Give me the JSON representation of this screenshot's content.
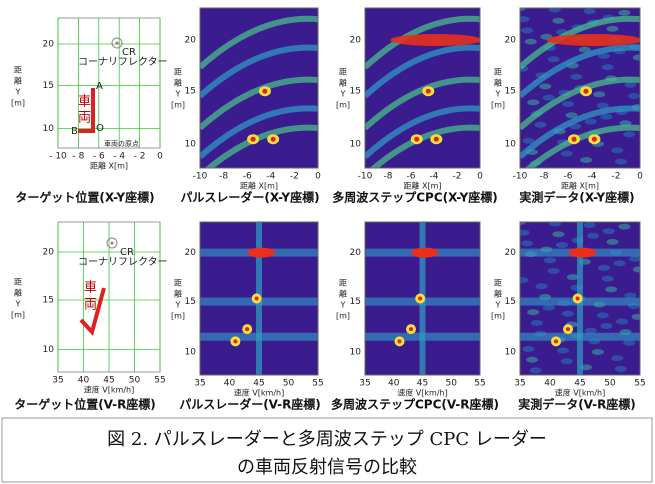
{
  "panels": [
    {
      "caption": "ターゲット位置(X-Y座標)",
      "x_label": "距離 X[m]",
      "y_label": [
        "距",
        "離",
        "Y",
        "[m]"
      ],
      "x_ticks": [
        "- 10",
        "- 8",
        "- 6",
        "- 4",
        "- 2",
        "0"
      ],
      "y_ticks": [
        "20",
        "15",
        "10"
      ]
    },
    {
      "caption": "パルスレーダー(X-Y座標)",
      "x_label": "距離 X[m]",
      "y_label": [
        "距",
        "離",
        "Y",
        "[m]"
      ],
      "x_ticks": [
        "-10",
        "-8",
        "-6",
        "-4",
        "-2",
        "0"
      ],
      "y_ticks": [
        "20",
        "15",
        "10"
      ]
    },
    {
      "caption": "多周波ステップCPC(X-Y座標)",
      "x_label": "距離 X[m]",
      "y_label": [
        "距",
        "離",
        "Y",
        "[m]"
      ],
      "x_ticks": [
        "-10",
        "-8",
        "-6",
        "-4",
        "-2",
        "0"
      ],
      "y_ticks": [
        "20",
        "15",
        "10"
      ]
    },
    {
      "caption": "実測データ(X-Y座標)",
      "x_label": "距離 X[m]",
      "y_label": [
        "距",
        "離",
        "Y",
        "[m]"
      ],
      "x_ticks": [
        "-10",
        "-8",
        "-6",
        "-4",
        "-2",
        "0"
      ],
      "y_ticks": [
        "20",
        "15",
        "10"
      ]
    },
    {
      "caption": "ターゲット位置(V-R座標)",
      "x_label": "速度 V[km/h]",
      "y_label": [
        "距",
        "離",
        "Y",
        "[m]"
      ],
      "x_ticks": [
        "35",
        "40",
        "45",
        "50",
        "55"
      ],
      "y_ticks": [
        "20",
        "15",
        "10"
      ]
    },
    {
      "caption": "パルスレーダー(V-R座標)",
      "x_label": "速度 V[km/h]",
      "y_label": [
        "距",
        "離",
        "Y",
        "[m]"
      ],
      "x_ticks": [
        "35",
        "40",
        "45",
        "50",
        "55"
      ],
      "y_ticks": [
        "20",
        "15",
        "10"
      ]
    },
    {
      "caption": "多周波ステップCPC(V-R座標)",
      "x_label": "速度 V[km/h]",
      "y_label": [
        "距",
        "離",
        "Y",
        "[m]"
      ],
      "x_ticks": [
        "35",
        "40",
        "45",
        "50",
        "55"
      ],
      "y_ticks": [
        "20",
        "15",
        "10"
      ]
    },
    {
      "caption": "実測データ(V-R座標)",
      "x_label": "速度 V[km/h]",
      "y_label": [
        "距",
        "離",
        "Y",
        "[m]"
      ],
      "x_ticks": [
        "35",
        "40",
        "45",
        "50",
        "55"
      ],
      "y_ticks": [
        "20",
        "15",
        "10"
      ]
    }
  ],
  "target_xy": {
    "cr": "CR",
    "reflector": "コーナリフレクター",
    "vehicle": [
      "車",
      "両"
    ],
    "a": "A",
    "b": "B",
    "o": "O",
    "origin": "車両の原点"
  },
  "target_vr": {
    "cr": "CR",
    "reflector": "コーナリフレクター",
    "vehicle": [
      "車",
      "両"
    ]
  },
  "caption": [
    "図 2. パルスレーダーと多周波ステップ CPC レーダー",
    "の車両反射信号の比較"
  ]
}
